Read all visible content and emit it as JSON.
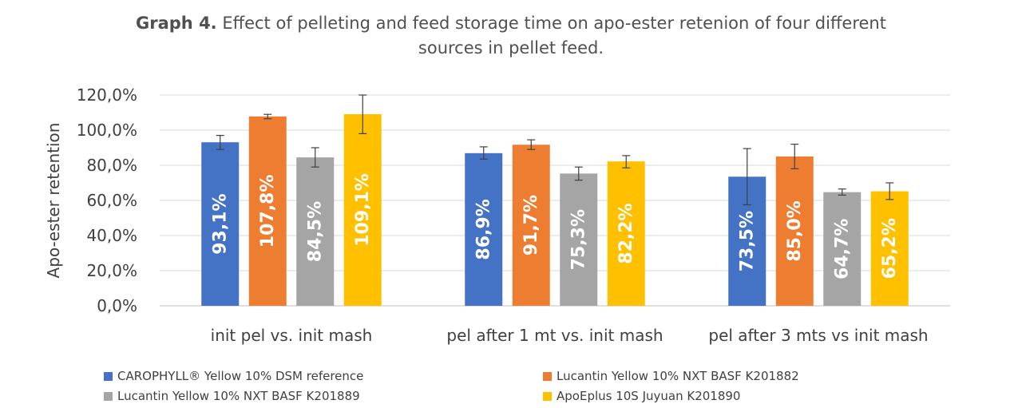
{
  "chart_data": {
    "type": "bar",
    "title_lead": "Graph 4.",
    "title_line1": "Effect of pelleting and feed storage time on apo-ester retenion of four different",
    "title_line2": "sources in pellet feed.",
    "xlabel": "",
    "ylabel": "Apo-ester retention",
    "ylim": [
      0,
      120
    ],
    "yticks": [
      0,
      20,
      40,
      60,
      80,
      100,
      120
    ],
    "ytick_labels": [
      "0,0%",
      "20,0%",
      "40,0%",
      "60,0%",
      "80,0%",
      "100,0%",
      "120,0%"
    ],
    "grid": true,
    "legend_position": "bottom",
    "categories": [
      "init pel vs. init mash",
      "pel after 1 mt vs. init mash",
      "pel after 3 mts vs init mash"
    ],
    "series": [
      {
        "name": "CAROPHYLL® Yellow 10% DSM reference",
        "color": "#4472C4",
        "values": [
          93.1,
          86.9,
          73.5
        ],
        "labels": [
          "93,1%",
          "86,9%",
          "73,5%"
        ],
        "err_low": [
          89.0,
          83.5,
          57.5
        ],
        "err_high": [
          97.0,
          90.5,
          89.5
        ]
      },
      {
        "name": "Lucantin Yellow 10% NXT BASF K201882",
        "color": "#ED7D31",
        "values": [
          107.8,
          91.7,
          85.0
        ],
        "labels": [
          "107,8%",
          "91,7%",
          "85,0%"
        ],
        "err_low": [
          106.5,
          89.0,
          78.0
        ],
        "err_high": [
          109.0,
          94.5,
          92.0
        ]
      },
      {
        "name": "Lucantin Yellow 10% NXT BASF K201889",
        "color": "#A5A5A5",
        "values": [
          84.5,
          75.3,
          64.7
        ],
        "labels": [
          "84,5%",
          "75,3%",
          "64,7%"
        ],
        "err_low": [
          79.0,
          71.5,
          63.0
        ],
        "err_high": [
          90.0,
          79.0,
          66.5
        ]
      },
      {
        "name": "ApoEplus 10S Juyuan K201890",
        "color": "#FFC000",
        "values": [
          109.1,
          82.2,
          65.2
        ],
        "labels": [
          "109,1%",
          "82,2%",
          "65,2%"
        ],
        "err_low": [
          98.0,
          78.5,
          60.5
        ],
        "err_high": [
          120.0,
          85.5,
          70.0
        ]
      }
    ]
  }
}
